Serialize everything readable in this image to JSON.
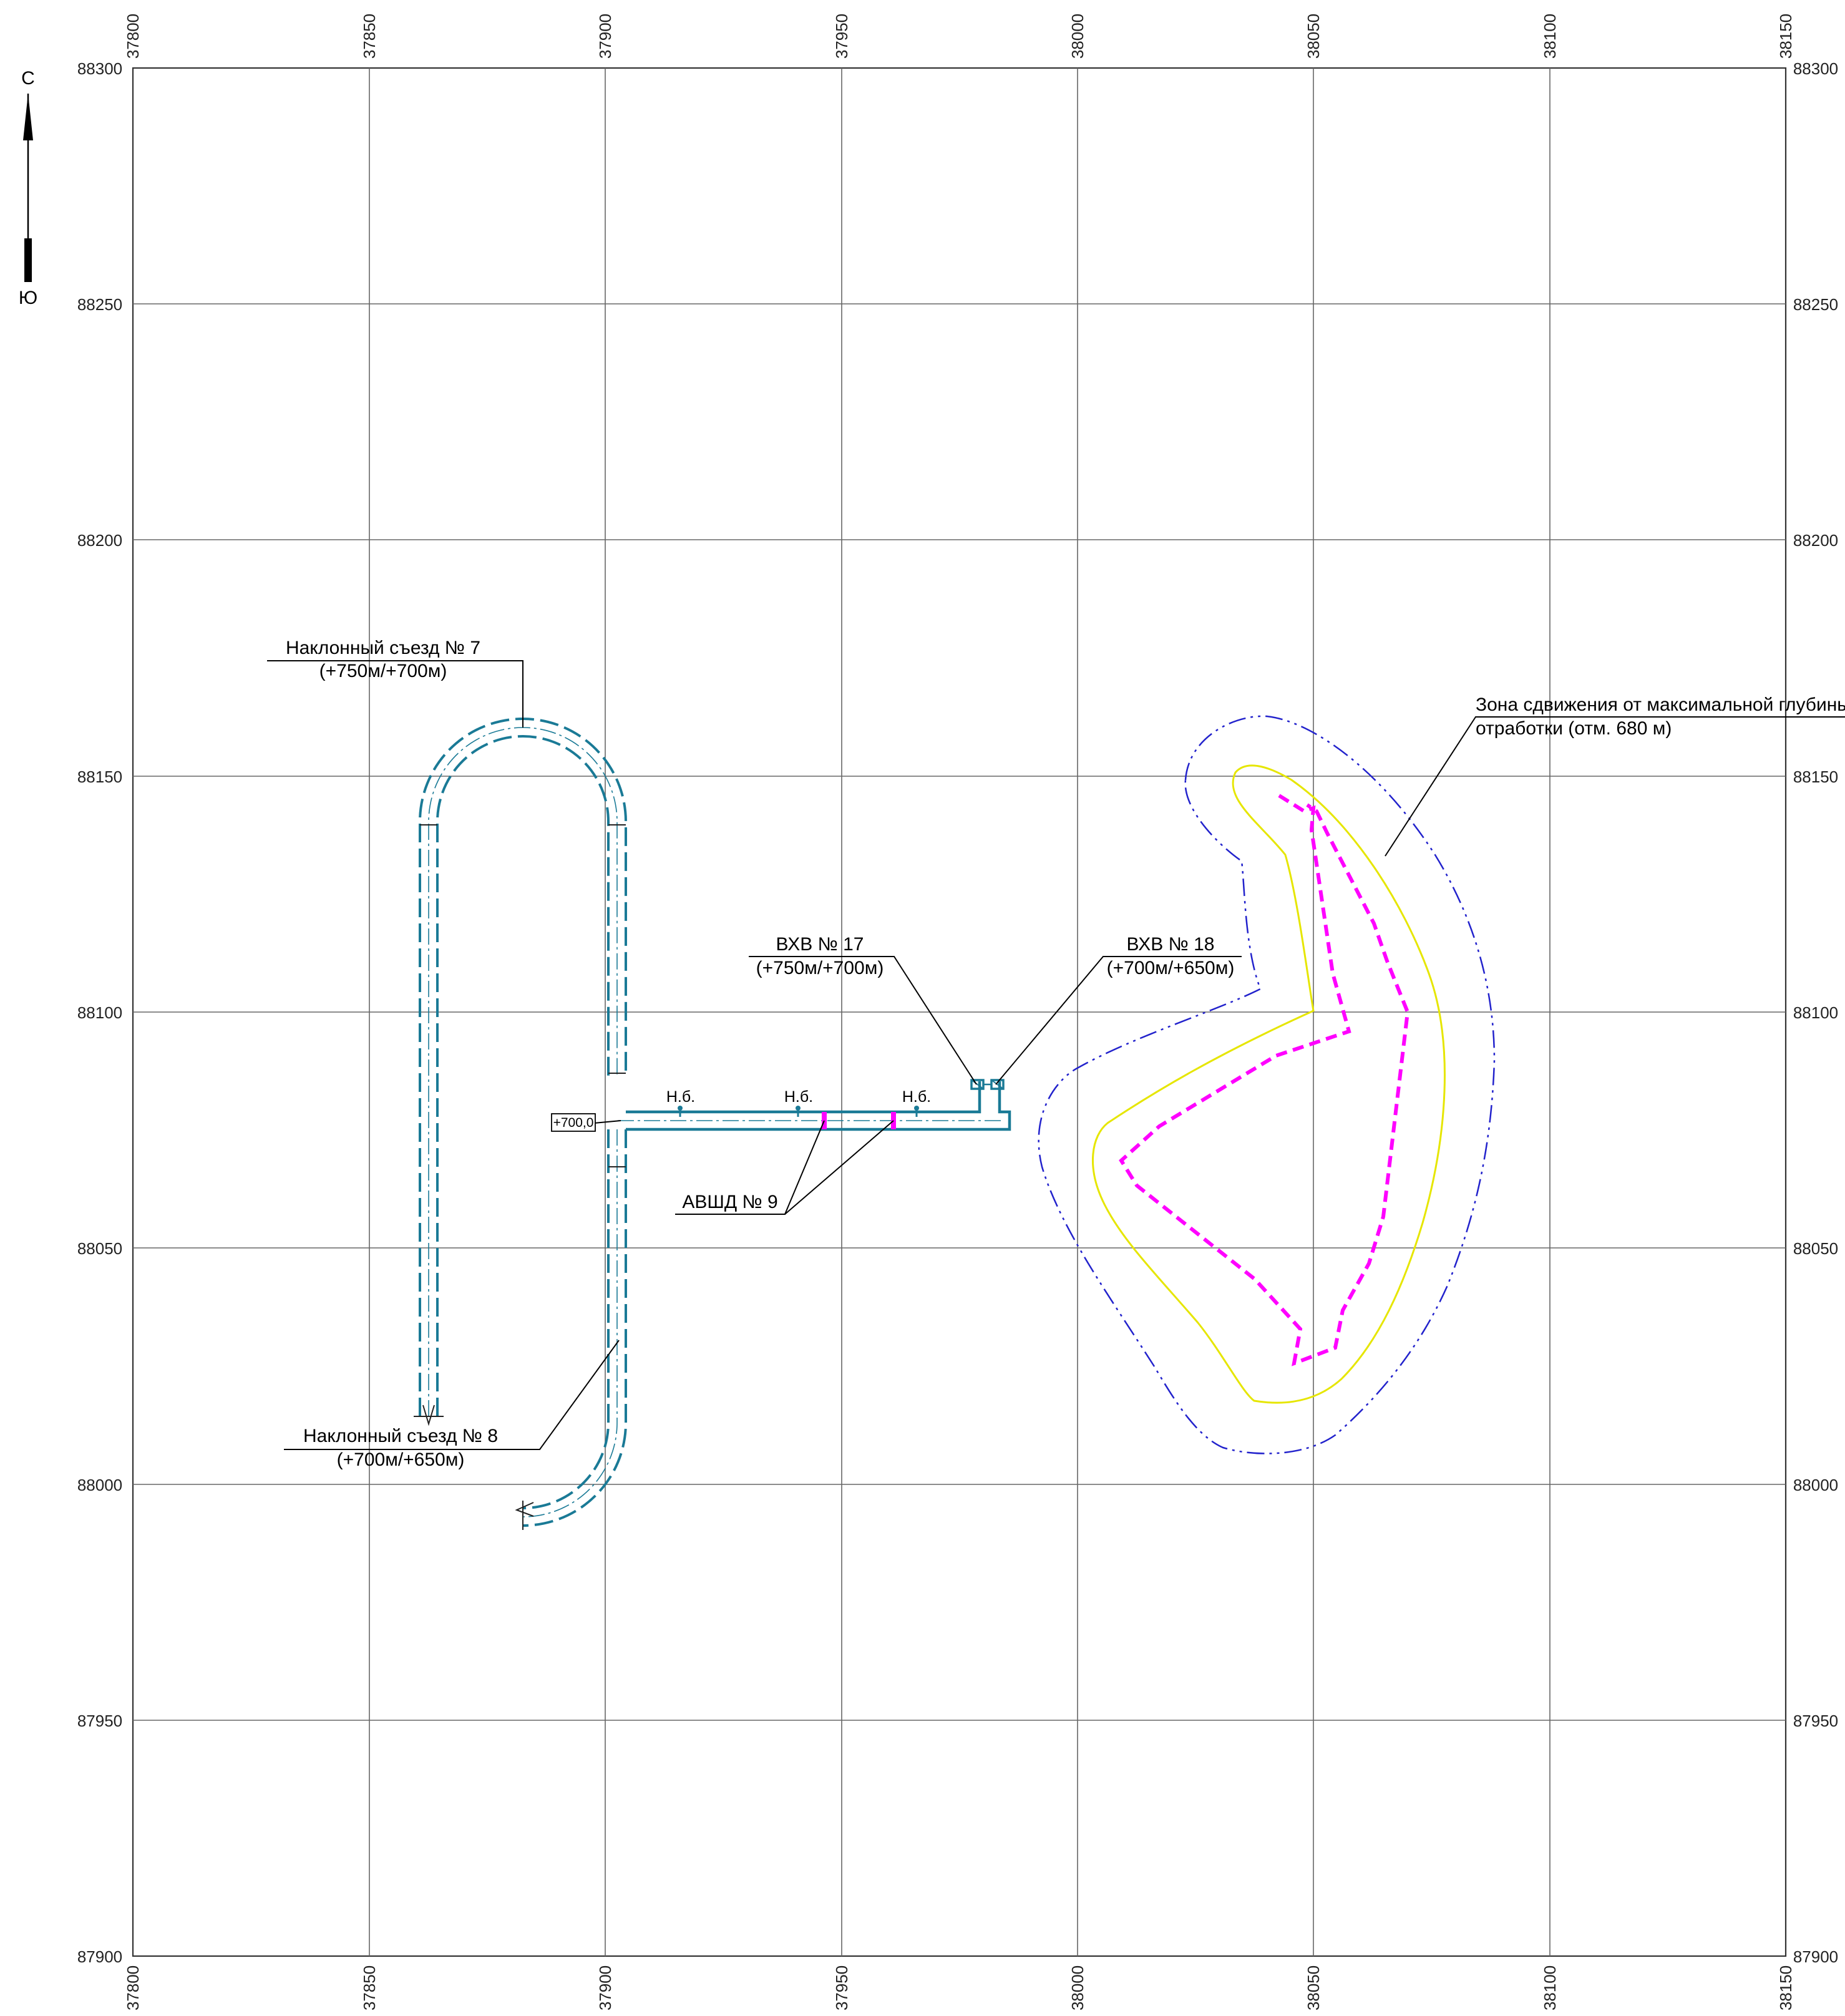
{
  "compass": {
    "north": "С",
    "south": "Ю"
  },
  "grid": {
    "x_ticks": [
      "37800",
      "37850",
      "37900",
      "37950",
      "38000",
      "38050",
      "38100",
      "38150"
    ],
    "y_ticks": [
      "88300",
      "88250",
      "88200",
      "88150",
      "88100",
      "88050",
      "88000",
      "87950",
      "87900"
    ]
  },
  "labels": {
    "ramp7_title": "Наклонный съезд № 7",
    "ramp7_levels": "(+750м/+700м)",
    "ramp8_title": "Наклонный съезд № 8",
    "ramp8_levels": "(+700м/+650м)",
    "vhv17_title": "ВХВ № 17",
    "vhv17_levels": "(+750м/+700м)",
    "vhv18_title": "ВХВ № 18",
    "vhv18_levels": "(+700м/+650м)",
    "avshd9": "АВШД № 9",
    "elevation_mark": "+700,0",
    "nb": "Н.б.",
    "zone_line1": "Зона сдвижения от максимальной глубины",
    "zone_line2": "отработки (отм. 680 м)"
  },
  "colors": {
    "workings": "#1a7a96",
    "outer_zone": "#2222cc",
    "inner_zone": "#e6e600",
    "mined_contour": "#ff00ff",
    "grid": "#666666"
  }
}
